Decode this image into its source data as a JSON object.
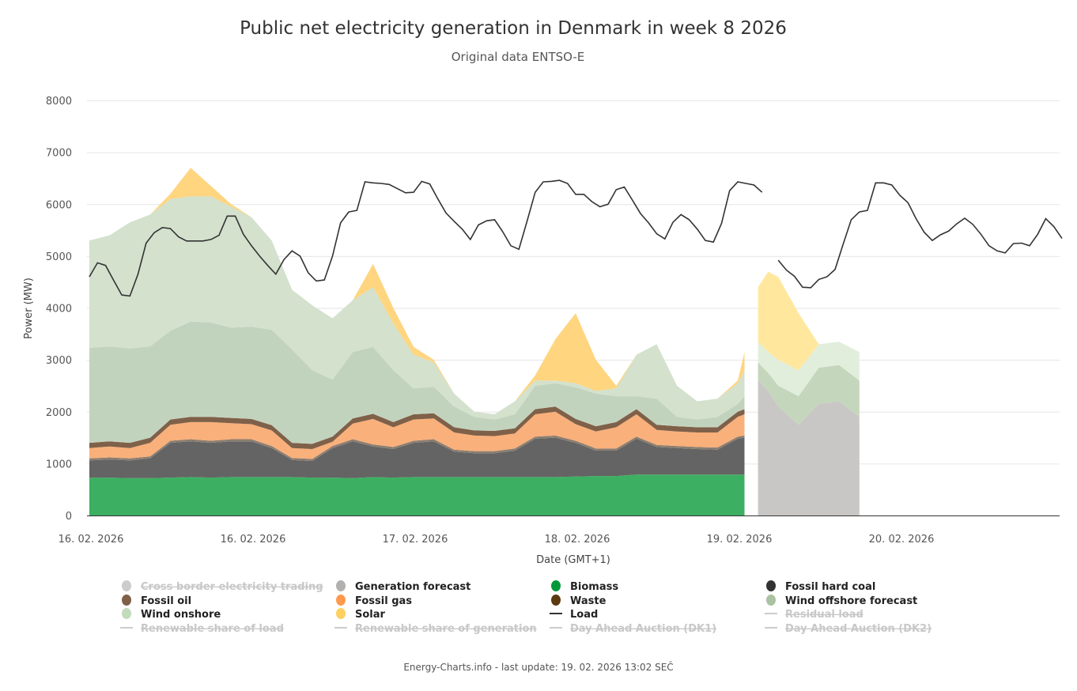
{
  "chart_data": {
    "type": "area",
    "title": "Public net electricity generation in Denmark in week 8 2026",
    "subtitle": "Original data ENTSO-E",
    "xlabel": "Date (GMT+1)",
    "ylabel": "Power (MW)",
    "ylim": [
      0,
      8000
    ],
    "yticks": [
      0,
      1000,
      2000,
      3000,
      4000,
      5000,
      6000,
      7000,
      8000
    ],
    "x_unit": "hours since start of week",
    "xlim": [
      0,
      144
    ],
    "xticks": [
      {
        "hour": 0,
        "label": "16. 02. 2026"
      },
      {
        "hour": 24,
        "label": "16. 02. 2026"
      },
      {
        "hour": 48,
        "label": "17. 02. 2026"
      },
      {
        "hour": 72,
        "label": "18. 02. 2026"
      },
      {
        "hour": 96,
        "label": "19. 02. 2026"
      },
      {
        "hour": 120,
        "label": "20. 02. 2026"
      }
    ],
    "grid": true,
    "stacked": true,
    "actual_hours": [
      0,
      3,
      6,
      9,
      12,
      15,
      18,
      21,
      24,
      27,
      30,
      33,
      36,
      39,
      42,
      45,
      48,
      51,
      54,
      57,
      60,
      63,
      66,
      69,
      72,
      75,
      78,
      81,
      84,
      87,
      90,
      93,
      96,
      97
    ],
    "actual_series": [
      {
        "name": "Biomass",
        "color": "#3daf62",
        "values": [
          730,
          730,
          720,
          720,
          730,
          740,
          730,
          740,
          740,
          740,
          740,
          730,
          730,
          720,
          740,
          730,
          740,
          740,
          740,
          740,
          740,
          740,
          740,
          740,
          750,
          760,
          760,
          790,
          790,
          790,
          790,
          790,
          790,
          790
        ]
      },
      {
        "name": "Fossil hard coal",
        "color": "#646464",
        "values": [
          330,
          350,
          340,
          380,
          670,
          690,
          670,
          690,
          690,
          560,
          330,
          320,
          570,
          710,
          590,
          550,
          660,
          690,
          490,
          460,
          460,
          510,
          740,
          760,
          650,
          490,
          490,
          690,
          530,
          510,
          490,
          480,
          690,
          710
        ]
      },
      {
        "name": "Waste",
        "color": "#8c7e70",
        "values": [
          40,
          40,
          40,
          40,
          40,
          40,
          40,
          40,
          40,
          40,
          40,
          40,
          40,
          40,
          40,
          40,
          40,
          40,
          40,
          40,
          40,
          40,
          40,
          40,
          40,
          40,
          40,
          40,
          40,
          40,
          40,
          40,
          40,
          40
        ]
      },
      {
        "name": "Fossil gas",
        "color": "#f9b07a",
        "values": [
          200,
          210,
          200,
          260,
          310,
          330,
          360,
          310,
          290,
          300,
          190,
          190,
          80,
          300,
          490,
          380,
          410,
          400,
          330,
          300,
          290,
          290,
          430,
          460,
          320,
          330,
          410,
          430,
          290,
          280,
          280,
          290,
          380,
          410
        ]
      },
      {
        "name": "Fossil oil",
        "color": "#7f6049",
        "values": [
          100,
          100,
          100,
          100,
          100,
          100,
          100,
          100,
          100,
          100,
          100,
          100,
          100,
          100,
          100,
          100,
          100,
          100,
          100,
          100,
          100,
          100,
          100,
          100,
          100,
          100,
          100,
          100,
          100,
          100,
          100,
          100,
          100,
          100
        ]
      },
      {
        "name": "Wind offshore",
        "color": "#c2d3bd",
        "values": [
          1830,
          1830,
          1820,
          1760,
          1710,
          1840,
          1820,
          1740,
          1780,
          1840,
          1800,
          1420,
          1100,
          1280,
          1290,
          1000,
          500,
          510,
          400,
          260,
          220,
          270,
          450,
          450,
          610,
          630,
          500,
          250,
          500,
          180,
          150,
          200,
          150,
          250
        ]
      },
      {
        "name": "Wind onshore",
        "color": "#d3e1cd",
        "values": [
          2070,
          2140,
          2430,
          2540,
          2540,
          2410,
          2430,
          2330,
          2110,
          1720,
          1150,
          1250,
          1180,
          1000,
          1150,
          900,
          650,
          470,
          250,
          100,
          100,
          250,
          100,
          50,
          80,
          50,
          150,
          800,
          1050,
          600,
          350,
          350,
          400,
          500
        ]
      },
      {
        "name": "Solar",
        "color": "#ffd580",
        "values": [
          0,
          0,
          0,
          0,
          100,
          550,
          200,
          50,
          0,
          0,
          0,
          0,
          0,
          0,
          450,
          300,
          150,
          50,
          0,
          0,
          0,
          0,
          100,
          800,
          1350,
          600,
          50,
          0,
          0,
          0,
          0,
          0,
          50,
          350
        ]
      }
    ],
    "forecast_hours": [
      99,
      100.5,
      102,
      105,
      108,
      111,
      114
    ],
    "forecast_series": [
      {
        "name": "Generation forecast",
        "color": "#c9c7c5",
        "values": [
          2600,
          2400,
          2100,
          1750,
          2150,
          2200,
          1900
        ]
      },
      {
        "name": "Wind offshore forecast",
        "color": "#c4d6bc",
        "values": [
          350,
          350,
          400,
          550,
          700,
          700,
          700
        ]
      },
      {
        "name": "Wind onshore forecast",
        "color": "#e1eedc",
        "values": [
          400,
          400,
          500,
          500,
          450,
          450,
          550
        ]
      },
      {
        "name": "Solar forecast",
        "color": "#ffe89e",
        "values": [
          1050,
          1550,
          1600,
          1100,
          0,
          0,
          0
        ]
      }
    ],
    "load": {
      "name": "Load",
      "color": "#333333",
      "start_hour": 0,
      "step_hours": 1.2,
      "values": [
        4600,
        4870,
        4820,
        4530,
        4250,
        4230,
        4650,
        5250,
        5450,
        5550,
        5530,
        5370,
        5290,
        5290,
        5290,
        5320,
        5400,
        5770,
        5770,
        5420,
        5200,
        5000,
        4820,
        4650,
        4930,
        5100,
        5000,
        4680,
        4520,
        4540,
        5000,
        5640,
        5850,
        5880,
        6430,
        6410,
        6400,
        6380,
        6300,
        6220,
        6230,
        6440,
        6390,
        6100,
        5830,
        5670,
        5520,
        5320,
        5600,
        5680,
        5700,
        5470,
        5200,
        5130,
        5670,
        6230,
        6430,
        6440,
        6460,
        6400,
        6190,
        6190,
        6050,
        5950,
        6000,
        6280,
        6330,
        6080,
        5820,
        5640,
        5430,
        5330,
        5650,
        5800,
        5700,
        5520,
        5300,
        5270,
        5630,
        6260,
        6430,
        6400,
        6370,
        6230,
        null,
        4920,
        4730,
        4610,
        4400,
        4390,
        4550,
        4600,
        4740,
        5230,
        5700,
        5850,
        5880,
        6410,
        6410,
        6370,
        6170,
        6030,
        5720,
        5460,
        5300,
        5410,
        5480,
        5620,
        5730,
        5610,
        5420,
        5200,
        5100,
        5060,
        5240,
        5250,
        5200,
        5420,
        5720,
        5570,
        5340
      ]
    },
    "legend": {
      "placement": "bottom",
      "items": [
        {
          "label": "Cross border electricity trading",
          "color": "#cccccc",
          "marker": "dot",
          "visible": false
        },
        {
          "label": "Generation forecast",
          "color": "#b3b1af",
          "marker": "dot",
          "visible": true
        },
        {
          "label": "Biomass",
          "color": "#00993a",
          "marker": "dot",
          "visible": true
        },
        {
          "label": "Fossil hard coal",
          "color": "#333333",
          "marker": "dot",
          "visible": true
        },
        {
          "label": "Fossil oil",
          "color": "#7f6049",
          "marker": "dot",
          "visible": true
        },
        {
          "label": "Fossil gas",
          "color": "#ff9a4d",
          "marker": "dot",
          "visible": true
        },
        {
          "label": "Waste",
          "color": "#5c3a10",
          "marker": "dot",
          "visible": true
        },
        {
          "label": "Wind offshore forecast",
          "color": "#a9c2a2",
          "marker": "dot",
          "visible": true
        },
        {
          "label": "Wind onshore",
          "color": "#c3dbbd",
          "marker": "dot",
          "visible": true
        },
        {
          "label": "Solar",
          "color": "#ffd060",
          "marker": "dot",
          "visible": true
        },
        {
          "label": "Load",
          "color": "#333333",
          "marker": "line",
          "visible": true
        },
        {
          "label": "Residual load",
          "color": "#cccccc",
          "marker": "line",
          "visible": false
        },
        {
          "label": "Renewable share of load",
          "color": "#cccccc",
          "marker": "line",
          "visible": false
        },
        {
          "label": "Renewable share of generation",
          "color": "#cccccc",
          "marker": "line",
          "visible": false
        },
        {
          "label": "Day Ahead Auction (DK1)",
          "color": "#cccccc",
          "marker": "line",
          "visible": false
        },
        {
          "label": "Day Ahead Auction (DK2)",
          "color": "#cccccc",
          "marker": "line",
          "visible": false
        }
      ]
    }
  },
  "footer": "Energy-Charts.info - last update: 19. 02. 2026 13:02 SEČ"
}
